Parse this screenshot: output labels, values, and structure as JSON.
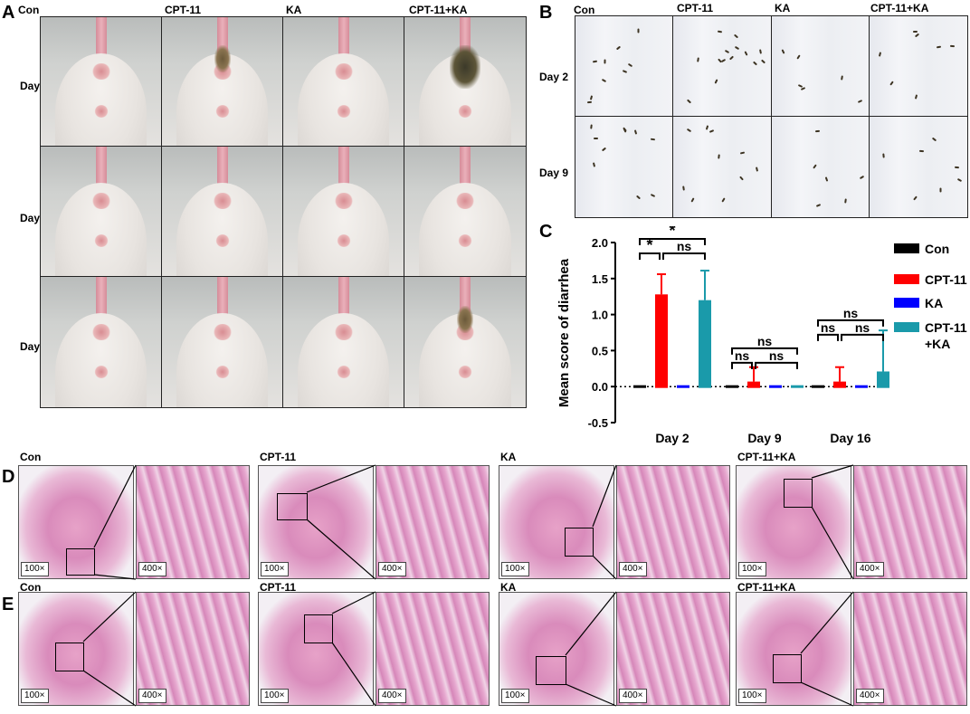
{
  "panels": {
    "a": "A",
    "b": "B",
    "c": "C",
    "d": "D",
    "e": "E"
  },
  "groups": [
    "Con",
    "CPT-11",
    "KA",
    "CPT-11+KA"
  ],
  "panel_a": {
    "rows": [
      "Day 2",
      "Day 9",
      "Day 16"
    ]
  },
  "panel_b": {
    "rows": [
      "Day 2",
      "Day 9"
    ]
  },
  "histology": {
    "mag_low": "100×",
    "mag_high": "400×"
  },
  "chart_data": {
    "type": "bar",
    "ylabel": "Mean score of diarrhea",
    "xlabel": "",
    "ylim": [
      -0.5,
      2.0
    ],
    "yticks": [
      "-0.5",
      "0.0",
      "0.5",
      "1.0",
      "1.5",
      "2.0"
    ],
    "categories": [
      "Day 2",
      "Day 9",
      "Day 16"
    ],
    "series": [
      {
        "name": "Con",
        "color": "#000000",
        "values": [
          0.0,
          0.0,
          0.0
        ],
        "errors": [
          0.0,
          0.0,
          0.0
        ]
      },
      {
        "name": "CPT-11",
        "color": "#ff0000",
        "values": [
          1.28,
          0.07,
          0.07
        ],
        "errors": [
          0.28,
          0.2,
          0.2
        ]
      },
      {
        "name": "KA",
        "color": "#0000ff",
        "values": [
          0.0,
          0.0,
          0.0
        ],
        "errors": [
          0.0,
          0.0,
          0.0
        ]
      },
      {
        "name": "CPT-11\n+KA",
        "legend_lines": [
          "CPT-11",
          "+KA"
        ],
        "color": "#1a9aaa",
        "values": [
          1.2,
          0.0,
          0.21
        ],
        "errors": [
          0.41,
          0.0,
          0.57
        ]
      }
    ],
    "significance": {
      "day2": [
        "*",
        "*",
        "ns"
      ],
      "day9": [
        "ns",
        "ns",
        "ns"
      ],
      "day16": [
        "ns",
        "ns",
        "ns"
      ]
    },
    "legend_position": "right"
  }
}
